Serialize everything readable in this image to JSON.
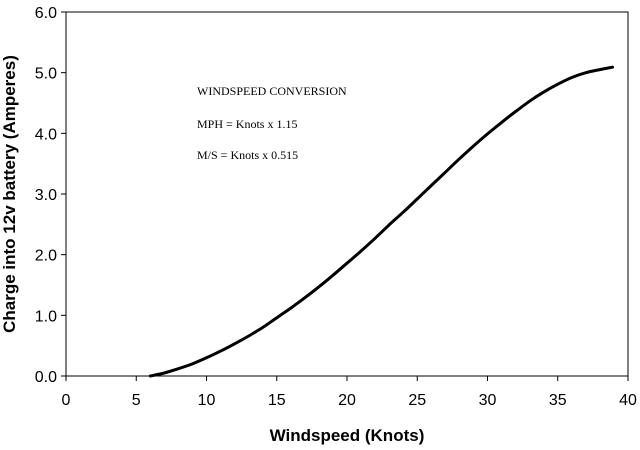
{
  "chart_data": {
    "type": "line",
    "title": "",
    "xlabel": "Windspeed (Knots)",
    "ylabel": "Charge into 12v battery (Amperes)",
    "xlim": [
      0,
      40
    ],
    "ylim": [
      0,
      6
    ],
    "x_ticks": [
      "0",
      "5",
      "10",
      "15",
      "20",
      "25",
      "30",
      "35",
      "40"
    ],
    "y_ticks": [
      "0.0",
      "1.0",
      "2.0",
      "3.0",
      "4.0",
      "5.0",
      "6.0"
    ],
    "grid": false,
    "legend": "none",
    "line_color": "#000000",
    "series": [
      {
        "x": [
          6,
          7,
          8,
          9,
          10,
          11,
          12,
          13,
          14,
          15,
          16,
          17,
          18,
          19,
          20,
          21,
          22,
          23,
          24,
          25,
          26,
          27,
          28,
          29,
          30,
          31,
          32,
          33,
          34,
          35,
          36,
          37,
          38,
          38.9
        ],
        "values": [
          0.0,
          0.05,
          0.12,
          0.2,
          0.3,
          0.41,
          0.53,
          0.66,
          0.8,
          0.96,
          1.12,
          1.29,
          1.47,
          1.66,
          1.86,
          2.06,
          2.27,
          2.49,
          2.7,
          2.92,
          3.14,
          3.36,
          3.58,
          3.79,
          3.99,
          4.18,
          4.36,
          4.53,
          4.68,
          4.81,
          4.92,
          5.0,
          5.05,
          5.09
        ]
      }
    ],
    "annotations": [
      "WINDSPEED CONVERSION",
      "MPH = Knots x 1.15",
      "M/S = Knots x 0.515"
    ]
  }
}
